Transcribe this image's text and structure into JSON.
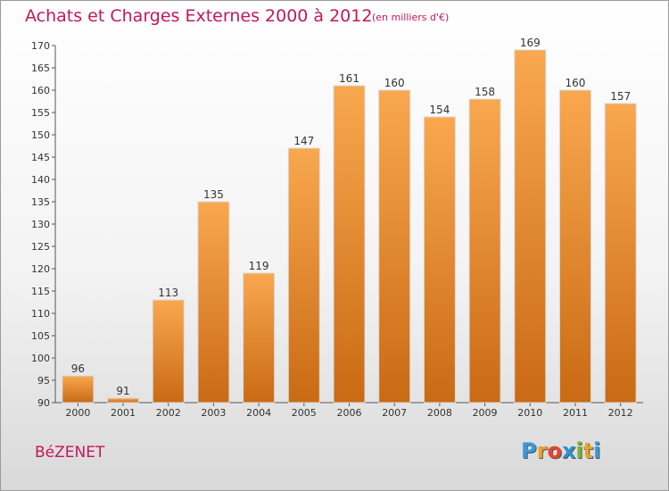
{
  "header": {
    "title": "Achats et Charges Externes 2000 à 2012",
    "subtitle": "(en milliers d'€)"
  },
  "footer": {
    "commune": "BéZENET",
    "logo_letters": [
      "P",
      "r",
      "o",
      "x",
      "i",
      "t",
      "i"
    ],
    "logo_colors": [
      "#3a9ad9",
      "#e8a32a",
      "#e2462e",
      "#2e8fd6",
      "#6fb83a",
      "#e8a32a",
      "#3a9ad9"
    ]
  },
  "colors": {
    "bar_top": "#f9a84f",
    "bar_bottom": "#c96a14",
    "bar_edge": "#d9d9d9",
    "text": "#333333",
    "accent": "#c1185a"
  },
  "chart_data": {
    "type": "bar",
    "categories": [
      "2000",
      "2001",
      "2002",
      "2003",
      "2004",
      "2005",
      "2006",
      "2007",
      "2008",
      "2009",
      "2010",
      "2011",
      "2012"
    ],
    "values": [
      96,
      91,
      113,
      135,
      119,
      147,
      161,
      160,
      154,
      158,
      169,
      160,
      157
    ],
    "value_labels": [
      "96",
      "91",
      "113",
      "135",
      "119",
      "147",
      "161",
      "160",
      "154",
      "158",
      "169",
      "160",
      "157"
    ],
    "ylim": [
      90,
      170
    ],
    "yticks": [
      90,
      95,
      100,
      105,
      110,
      115,
      120,
      125,
      130,
      135,
      140,
      145,
      150,
      155,
      160,
      165,
      170
    ],
    "title": "Achats et Charges Externes 2000 à 2012",
    "xlabel": "",
    "ylabel": "",
    "grid": false,
    "legend": "none"
  }
}
